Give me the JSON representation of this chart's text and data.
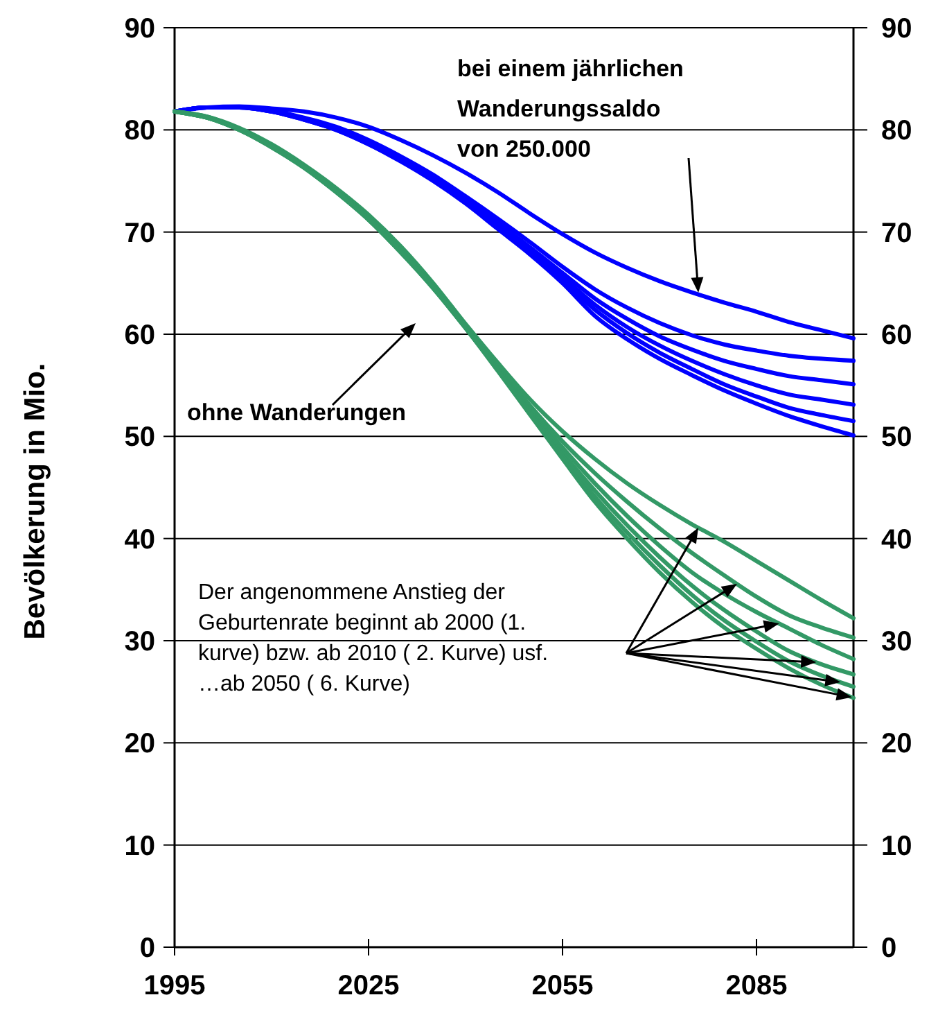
{
  "chart_data": {
    "type": "line",
    "ylabel": "Bevölkerung in Mio.",
    "x": [
      1995,
      2000,
      2005,
      2010,
      2015,
      2020,
      2025,
      2030,
      2035,
      2040,
      2045,
      2050,
      2055,
      2060,
      2065,
      2070,
      2075,
      2080,
      2085,
      2090,
      2095,
      2100
    ],
    "xlim": [
      1995,
      2100
    ],
    "xticks": [
      1995,
      2025,
      2055,
      2085
    ],
    "ylim": [
      0,
      90
    ],
    "yticks": [
      0,
      10,
      20,
      30,
      40,
      50,
      60,
      70,
      80,
      90
    ],
    "y2lim": [
      0,
      90
    ],
    "y2ticks": [
      0,
      10,
      20,
      30,
      40,
      50,
      60,
      70,
      80,
      90
    ],
    "grid": "y",
    "marker": "none",
    "line_style": "solid",
    "series": [
      {
        "color": "#0000ff",
        "values": [
          81.8,
          82.2,
          82.3,
          82.1,
          81.8,
          81.2,
          80.3,
          79.0,
          77.5,
          75.8,
          73.9,
          71.8,
          69.8,
          68.0,
          66.5,
          65.2,
          64.1,
          63.1,
          62.2,
          61.2,
          60.4,
          59.6
        ]
      },
      {
        "color": "#0000ff",
        "values": [
          81.8,
          82.2,
          82.2,
          81.9,
          81.2,
          80.3,
          79.0,
          77.4,
          75.6,
          73.5,
          71.3,
          69.0,
          66.6,
          64.4,
          62.6,
          61.1,
          59.9,
          59.0,
          58.4,
          57.9,
          57.6,
          57.4
        ]
      },
      {
        "color": "#0000ff",
        "values": [
          81.8,
          82.2,
          82.2,
          81.9,
          81.1,
          80.2,
          78.8,
          77.2,
          75.3,
          73.2,
          70.9,
          68.5,
          66.0,
          63.5,
          61.5,
          59.8,
          58.5,
          57.4,
          56.6,
          55.9,
          55.5,
          55.1
        ]
      },
      {
        "color": "#0000ff",
        "values": [
          81.8,
          82.2,
          82.2,
          81.8,
          81.1,
          80.1,
          78.7,
          77.1,
          75.2,
          73.0,
          70.6,
          68.2,
          65.6,
          62.9,
          60.7,
          58.9,
          57.4,
          56.1,
          55.0,
          54.1,
          53.6,
          53.1
        ]
      },
      {
        "color": "#0000ff",
        "values": [
          81.8,
          82.2,
          82.2,
          81.8,
          81.0,
          80.0,
          78.6,
          77.0,
          75.1,
          72.9,
          70.4,
          68.0,
          65.3,
          62.4,
          60.1,
          58.2,
          56.6,
          55.1,
          53.9,
          52.8,
          52.1,
          51.5
        ]
      },
      {
        "color": "#0000ff",
        "values": [
          81.8,
          82.2,
          82.2,
          81.8,
          81.0,
          80.0,
          78.6,
          76.9,
          75.0,
          72.8,
          70.3,
          67.8,
          65.0,
          61.8,
          59.5,
          57.6,
          56.0,
          54.5,
          53.2,
          52.0,
          51.0,
          50.1
        ]
      },
      {
        "color": "#339966",
        "values": [
          81.8,
          81.3,
          80.2,
          78.6,
          76.6,
          74.3,
          71.7,
          68.6,
          65.0,
          61.0,
          57.2,
          53.6,
          50.5,
          47.8,
          45.4,
          43.3,
          41.4,
          39.7,
          37.8,
          35.9,
          34.0,
          32.2
        ]
      },
      {
        "color": "#339966",
        "values": [
          81.8,
          81.3,
          80.1,
          78.5,
          76.5,
          74.1,
          71.5,
          68.4,
          64.8,
          60.8,
          56.9,
          53.0,
          49.5,
          46.4,
          43.6,
          41.0,
          38.6,
          36.4,
          34.3,
          32.5,
          31.3,
          30.3
        ]
      },
      {
        "color": "#339966",
        "values": [
          81.8,
          81.2,
          80.1,
          78.4,
          76.4,
          74.0,
          71.4,
          68.2,
          64.7,
          60.7,
          56.7,
          52.7,
          48.9,
          45.4,
          42.2,
          39.3,
          36.7,
          34.6,
          32.8,
          31.2,
          29.6,
          28.2
        ]
      },
      {
        "color": "#339966",
        "values": [
          81.8,
          81.2,
          80.0,
          78.4,
          76.4,
          74.0,
          71.3,
          68.1,
          64.6,
          60.7,
          56.6,
          52.5,
          48.4,
          44.7,
          41.3,
          38.2,
          35.4,
          33.0,
          30.9,
          29.0,
          27.7,
          26.7
        ]
      },
      {
        "color": "#339966",
        "values": [
          81.8,
          81.2,
          80.0,
          78.3,
          76.3,
          73.9,
          71.2,
          68.0,
          64.5,
          60.6,
          56.5,
          52.3,
          48.1,
          44.1,
          40.6,
          37.4,
          34.5,
          32.0,
          29.9,
          28.0,
          26.6,
          25.5
        ]
      },
      {
        "color": "#339966",
        "values": [
          81.8,
          81.2,
          80.0,
          78.3,
          76.3,
          73.9,
          71.2,
          68.0,
          64.5,
          60.6,
          56.4,
          52.1,
          47.8,
          43.6,
          40.0,
          36.7,
          33.8,
          31.3,
          29.2,
          27.3,
          25.7,
          24.4
        ]
      }
    ],
    "annotations": [
      "bei einem jährlichen Wanderungssaldo von 250.000",
      "ohne Wanderungen",
      "Der angenommene Anstieg der Geburtenrate beginnt ab 2000 (1. kurve) bzw. ab 2010 ( 2. Kurve) usf. …ab 2050 ( 6. Kurve)"
    ]
  }
}
